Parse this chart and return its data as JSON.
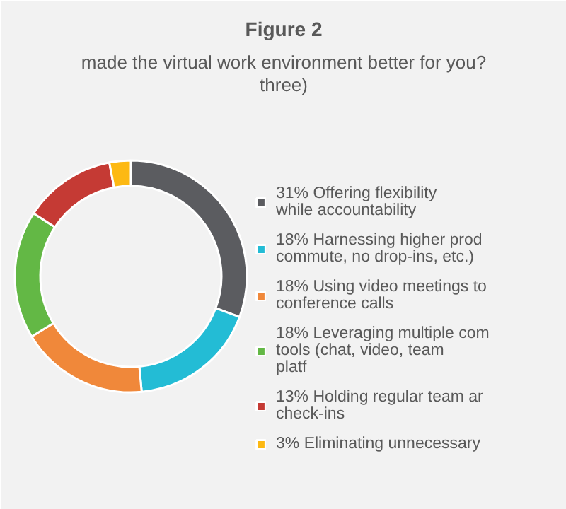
{
  "chart_data": {
    "type": "donut",
    "title": "Figure 2",
    "subtitle": "made the virtual work environment better for you? three)",
    "categories": [
      "31% Offering flexibility while accountability",
      "18% Harnessing higher prod commute, no drop-ins, etc.)",
      "18% Using video meetings to conference calls",
      "18% Leveraging multiple com tools (chat, video, team platf",
      "13% Holding regular team ar check-ins",
      "3% Eliminating unnecessary"
    ],
    "values": [
      31,
      18,
      18,
      18,
      13,
      3
    ],
    "colors": [
      "#5b5c60",
      "#23bcd5",
      "#f0883a",
      "#63b845",
      "#c53a34",
      "#fdb913"
    ],
    "legend": "right"
  }
}
